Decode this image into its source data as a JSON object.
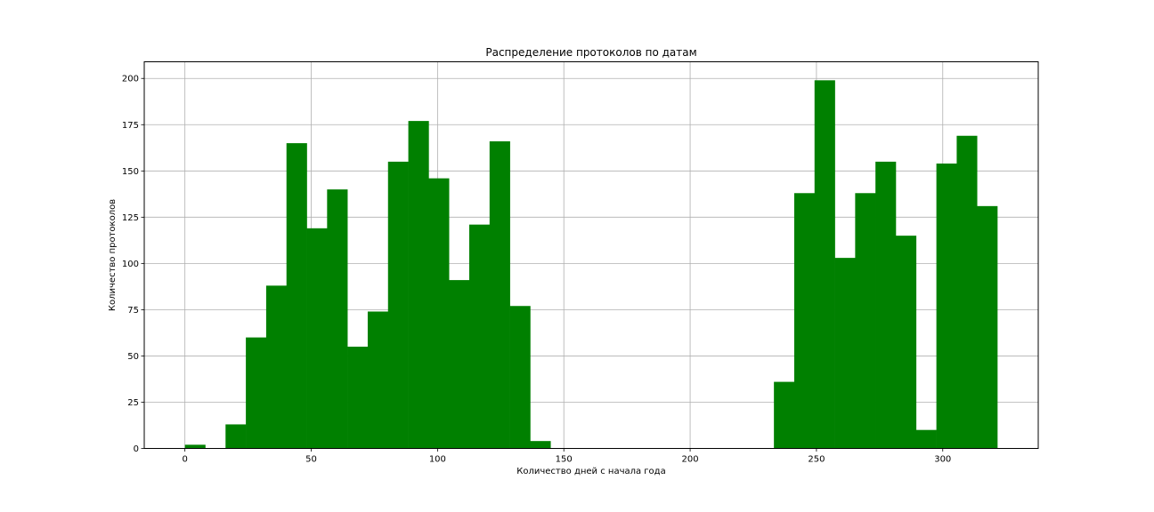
{
  "chart_data": {
    "type": "bar",
    "title": "Распределение протоколов по датам",
    "xlabel": "Количество дней с начала года",
    "ylabel": "Количество протоколов",
    "xlim": [
      -16.1,
      337.8
    ],
    "ylim": [
      0,
      209
    ],
    "xticks": [
      0,
      50,
      100,
      150,
      200,
      250,
      300
    ],
    "yticks": [
      0,
      25,
      50,
      75,
      100,
      125,
      150,
      175,
      200
    ],
    "grid": true,
    "bar_color": "#008000",
    "bin_width": 8.04,
    "bins": [
      {
        "x0": 0.0,
        "value": 2
      },
      {
        "x0": 8.04,
        "value": 0
      },
      {
        "x0": 16.08,
        "value": 13
      },
      {
        "x0": 24.12,
        "value": 60
      },
      {
        "x0": 32.16,
        "value": 88
      },
      {
        "x0": 40.2,
        "value": 165
      },
      {
        "x0": 48.24,
        "value": 119
      },
      {
        "x0": 56.28,
        "value": 140
      },
      {
        "x0": 64.32,
        "value": 55
      },
      {
        "x0": 72.36,
        "value": 74
      },
      {
        "x0": 80.4,
        "value": 155
      },
      {
        "x0": 88.44,
        "value": 177
      },
      {
        "x0": 96.48,
        "value": 146
      },
      {
        "x0": 104.52,
        "value": 91
      },
      {
        "x0": 112.56,
        "value": 121
      },
      {
        "x0": 120.6,
        "value": 166
      },
      {
        "x0": 128.64,
        "value": 77
      },
      {
        "x0": 136.68,
        "value": 4
      },
      {
        "x0": 144.72,
        "value": 0
      },
      {
        "x0": 152.76,
        "value": 0
      },
      {
        "x0": 160.8,
        "value": 0
      },
      {
        "x0": 168.84,
        "value": 0
      },
      {
        "x0": 176.88,
        "value": 0
      },
      {
        "x0": 184.92,
        "value": 0
      },
      {
        "x0": 192.96,
        "value": 0
      },
      {
        "x0": 201.0,
        "value": 0
      },
      {
        "x0": 209.04,
        "value": 0
      },
      {
        "x0": 217.08,
        "value": 0
      },
      {
        "x0": 225.12,
        "value": 0
      },
      {
        "x0": 233.16,
        "value": 36
      },
      {
        "x0": 241.2,
        "value": 138
      },
      {
        "x0": 249.24,
        "value": 199
      },
      {
        "x0": 257.28,
        "value": 103
      },
      {
        "x0": 265.32,
        "value": 138
      },
      {
        "x0": 273.36,
        "value": 155
      },
      {
        "x0": 281.4,
        "value": 115
      },
      {
        "x0": 289.44,
        "value": 10
      },
      {
        "x0": 297.48,
        "value": 154
      },
      {
        "x0": 305.52,
        "value": 169
      },
      {
        "x0": 313.56,
        "value": 131
      }
    ]
  }
}
